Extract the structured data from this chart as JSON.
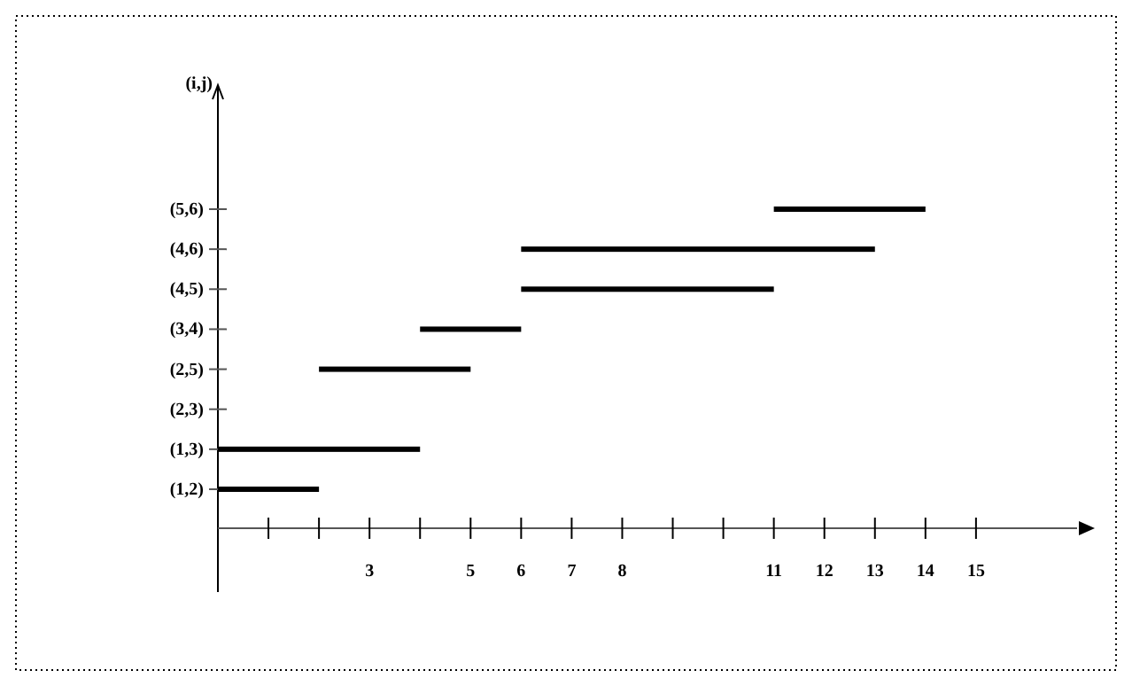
{
  "chart_data": {
    "type": "bar",
    "orientation": "horizontal",
    "annotations": [
      "(i,j)"
    ],
    "categories": [
      "(5,6)",
      "(4,6)",
      "(4,5)",
      "(3,4)",
      "(2,5)",
      "(2,3)",
      "(1,3)",
      "(1,2)"
    ],
    "base": [
      11,
      6,
      6,
      4,
      2,
      null,
      0,
      0
    ],
    "values": [
      3,
      7,
      5,
      2,
      3,
      null,
      4,
      2
    ],
    "color": "#000000",
    "xlim": [
      0,
      17
    ],
    "xticks": [
      {
        "value": 1,
        "label": null
      },
      {
        "value": 2,
        "label": null
      },
      3,
      {
        "value": 4,
        "label": null
      },
      5,
      6,
      7,
      8,
      {
        "value": 9,
        "label": null
      },
      {
        "value": 10,
        "label": null
      },
      11,
      12,
      13,
      14,
      15
    ],
    "grid": false
  }
}
